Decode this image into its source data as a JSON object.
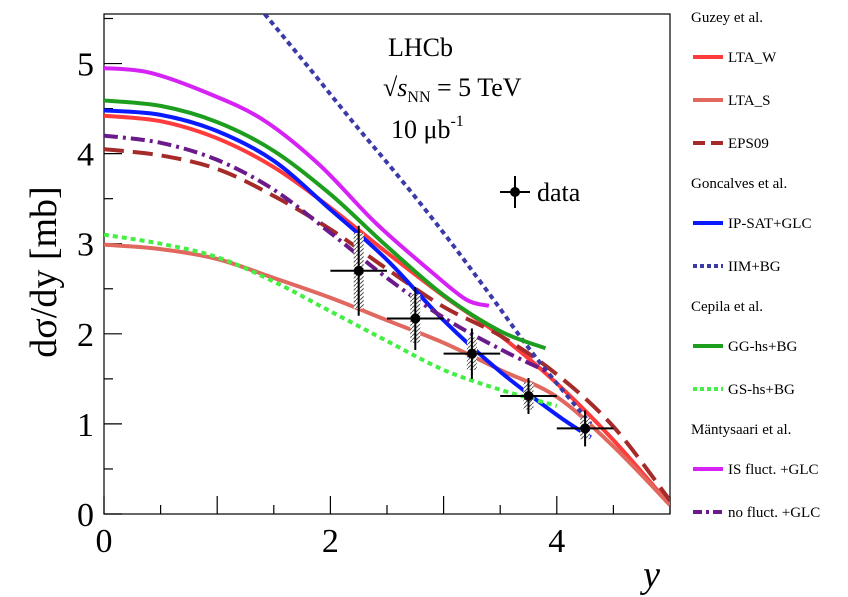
{
  "chart_data": {
    "type": "line",
    "xlabel": "y",
    "ylabel": "dσ/dy [mb]",
    "xlim": [
      0,
      5
    ],
    "ylim": [
      0,
      5.55
    ],
    "x_ticks": [
      "0",
      "2",
      "4"
    ],
    "y_ticks": [
      "0",
      "1",
      "2",
      "3",
      "4",
      "5"
    ],
    "grid": false,
    "legend_position": "right",
    "annotations": {
      "experiment": "LHCb",
      "energy_symbol": "√s",
      "energy_sub": "NN",
      "energy_value": " = 5 TeV",
      "lumi_value": "10 μb",
      "lumi_exp": "-1"
    },
    "legend_groups": [
      {
        "header": "Guzey et al.",
        "entries": [
          "LTA_W",
          "LTA_S",
          "EPS09"
        ]
      },
      {
        "header": "Goncalves et al.",
        "entries": [
          "IP-SAT+GLC",
          "IIM+BG"
        ]
      },
      {
        "header": "Cepila et al.",
        "entries": [
          "GG-hs+BG",
          "GS-hs+BG"
        ]
      },
      {
        "header": "Mäntysaari et al.",
        "entries": [
          "IS fluct. +GLC",
          "no fluct. +GLC"
        ]
      }
    ],
    "series": [
      {
        "name": "LTA_W",
        "color": "#ff3b3b",
        "dash": "solid",
        "x": [
          0,
          0.5,
          1.0,
          1.5,
          2.0,
          2.5,
          3.0,
          3.5,
          4.0,
          4.5,
          5.0
        ],
        "y": [
          4.42,
          4.36,
          4.17,
          3.85,
          3.4,
          2.9,
          2.42,
          1.98,
          1.45,
          0.82,
          0.1
        ]
      },
      {
        "name": "LTA_S",
        "color": "#e0685e",
        "dash": "solid",
        "x": [
          0,
          0.5,
          1.0,
          1.5,
          2.0,
          2.5,
          3.0,
          3.5,
          4.0,
          4.5,
          5.0
        ],
        "y": [
          2.99,
          2.94,
          2.83,
          2.62,
          2.4,
          2.15,
          1.9,
          1.6,
          1.3,
          0.75,
          0.1
        ]
      },
      {
        "name": "EPS09",
        "color": "#a52a2a",
        "dash": "long",
        "x": [
          0,
          0.5,
          1.0,
          1.5,
          2.0,
          2.5,
          3.0,
          3.5,
          4.0,
          4.5,
          5.0
        ],
        "y": [
          4.05,
          3.98,
          3.83,
          3.53,
          3.16,
          2.72,
          2.3,
          1.98,
          1.55,
          0.97,
          0.15
        ]
      },
      {
        "name": "IP-SAT+GLC",
        "color": "#0a1aff",
        "dash": "solid",
        "x": [
          0,
          0.5,
          1.0,
          1.5,
          2.0,
          2.5,
          3.0,
          3.5,
          4.0,
          4.3
        ],
        "y": [
          4.48,
          4.43,
          4.25,
          3.92,
          3.38,
          2.82,
          2.15,
          1.58,
          1.1,
          0.85
        ]
      },
      {
        "name": "IIM+BG",
        "color": "#3a3aa8",
        "dash": "dot",
        "x": [
          1.42,
          1.8,
          2.2,
          2.6,
          3.0,
          3.4,
          3.82,
          4.3
        ],
        "y": [
          5.55,
          4.97,
          4.35,
          3.75,
          3.12,
          2.45,
          1.73,
          1.0
        ]
      },
      {
        "name": "GG-hs+BG",
        "color": "#1e9e1e",
        "dash": "solid",
        "x": [
          0,
          0.5,
          1.0,
          1.5,
          2.0,
          2.5,
          3.0,
          3.5,
          3.9
        ],
        "y": [
          4.59,
          4.53,
          4.35,
          4.03,
          3.55,
          2.97,
          2.43,
          2.03,
          1.84
        ]
      },
      {
        "name": "GS-hs+BG",
        "color": "#44ee44",
        "dash": "dot",
        "x": [
          0,
          0.5,
          1.0,
          1.5,
          2.0,
          2.5,
          3.0,
          3.5,
          4.0
        ],
        "y": [
          3.1,
          3.0,
          2.85,
          2.58,
          2.25,
          1.92,
          1.6,
          1.38,
          1.2
        ]
      },
      {
        "name": "IS fluct. +GLC",
        "color": "#d623f5",
        "dash": "solid",
        "x": [
          0,
          0.4,
          0.9,
          1.4,
          1.9,
          2.4,
          2.9,
          3.2,
          3.4
        ],
        "y": [
          4.95,
          4.9,
          4.68,
          4.38,
          3.88,
          3.23,
          2.68,
          2.38,
          2.31
        ]
      },
      {
        "name": "no fluct. +GLC",
        "color": "#6a1a8a",
        "dash": "dashdot",
        "x": [
          0,
          0.5,
          1.0,
          1.5,
          2.0,
          2.5,
          3.0,
          3.5,
          3.9
        ],
        "y": [
          4.2,
          4.12,
          3.93,
          3.6,
          3.12,
          2.62,
          2.18,
          1.83,
          1.59
        ]
      }
    ],
    "data_series": {
      "name": "data",
      "x": [
        2.25,
        2.75,
        3.25,
        3.75,
        4.25
      ],
      "xerr": [
        0.25,
        0.25,
        0.25,
        0.25,
        0.25
      ],
      "y": [
        2.7,
        2.17,
        1.78,
        1.31,
        0.95
      ],
      "yerr": [
        0.5,
        0.35,
        0.28,
        0.2,
        0.2
      ],
      "syst": [
        0.42,
        0.27,
        0.18,
        0.15,
        0.12
      ]
    }
  }
}
